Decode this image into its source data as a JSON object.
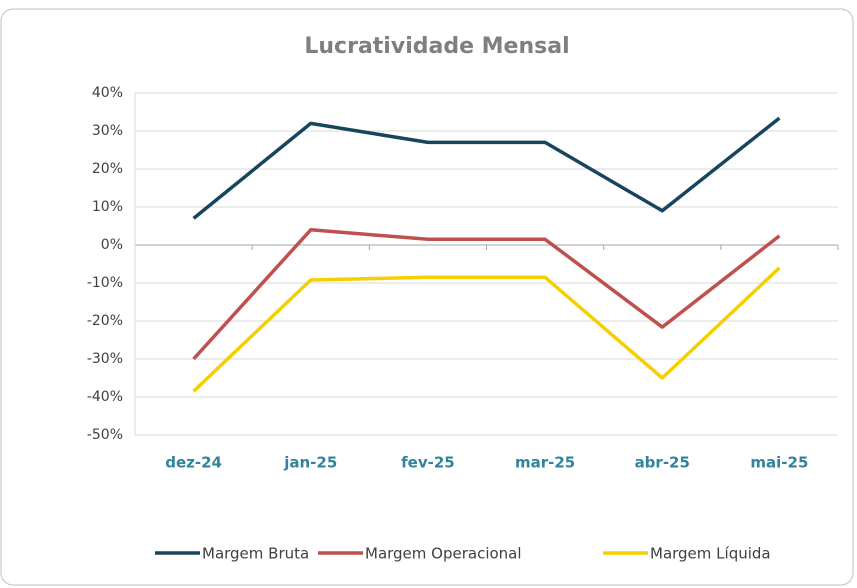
{
  "chart_data": {
    "type": "line",
    "title": "Lucratividade Mensal",
    "categories": [
      "dez-24",
      "jan-25",
      "fev-25",
      "mar-25",
      "abr-25",
      "mai-25"
    ],
    "series": [
      {
        "name": "Margem Bruta",
        "color": "#17455e",
        "values": [
          7,
          32,
          27,
          27,
          9,
          33.4
        ]
      },
      {
        "name": "Margem Operacional",
        "color": "#c0504d",
        "values": [
          -30,
          4,
          1.5,
          1.5,
          -21.6,
          2.4
        ]
      },
      {
        "name": "Margem Líquida",
        "color": "#f5d000",
        "values": [
          -38.5,
          -9.2,
          -8.5,
          -8.5,
          -35,
          -6
        ]
      }
    ],
    "ylim": [
      -50,
      40
    ],
    "yticks": [
      {
        "value": -50,
        "label": "-50%"
      },
      {
        "value": -40,
        "label": "-40%"
      },
      {
        "value": -30,
        "label": "-30%"
      },
      {
        "value": -20,
        "label": "-20%"
      },
      {
        "value": -10,
        "label": "-10%"
      },
      {
        "value": 0,
        "label": "0%"
      },
      {
        "value": 10,
        "label": "10%"
      },
      {
        "value": 20,
        "label": "20%"
      },
      {
        "value": 30,
        "label": "30%"
      },
      {
        "value": 40,
        "label": "40%"
      }
    ],
    "grid": true,
    "legend": "bottom"
  }
}
